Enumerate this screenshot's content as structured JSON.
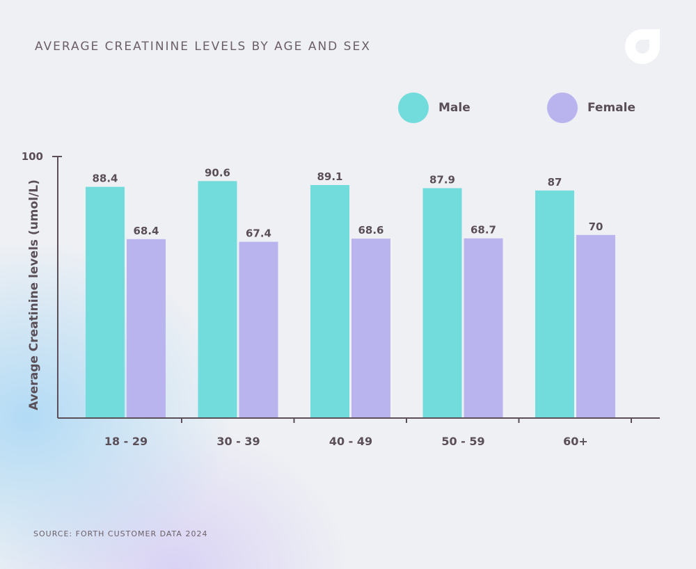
{
  "header": {
    "title": "AVERAGE CREATININE LEVELS BY AGE AND SEX",
    "source": "SOURCE: FORTH CUSTOMER DATA 2024"
  },
  "colors": {
    "male": "#72dbdc",
    "female": "#bab4ee",
    "axis": "#5a4e57",
    "text": "#5a4e57"
  },
  "chart_data": {
    "type": "bar",
    "title": "AVERAGE CREATININE LEVELS BY AGE AND SEX",
    "xlabel": "",
    "ylabel": "Average Creatinine levels (umol/L)",
    "ylim": [
      0,
      100
    ],
    "yticks": [
      100
    ],
    "categories": [
      "18 - 29",
      "30 - 39",
      "40 - 49",
      "50 - 59",
      "60+"
    ],
    "series": [
      {
        "name": "Male",
        "values": [
          88.4,
          90.6,
          89.1,
          87.9,
          87
        ],
        "labels": [
          "88.4",
          "90.6",
          "89.1",
          "87.9",
          "87"
        ]
      },
      {
        "name": "Female",
        "values": [
          68.4,
          67.4,
          68.6,
          68.7,
          70
        ],
        "labels": [
          "68.4",
          "67.4",
          "68.6",
          "68.7",
          "70"
        ]
      }
    ],
    "legend": "top-right"
  }
}
